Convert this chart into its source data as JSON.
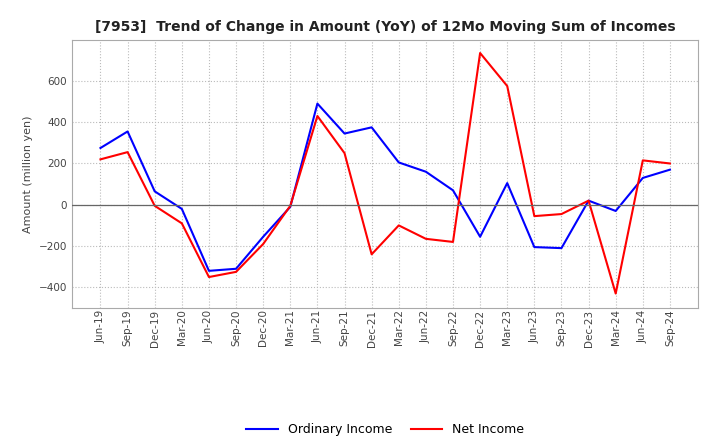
{
  "title": "[7953]  Trend of Change in Amount (YoY) of 12Mo Moving Sum of Incomes",
  "ylabel": "Amount (million yen)",
  "background_color": "#ffffff",
  "plot_bg_color": "#ffffff",
  "grid_color": "#bbbbbb",
  "labels": [
    "Jun-19",
    "Sep-19",
    "Dec-19",
    "Mar-20",
    "Jun-20",
    "Sep-20",
    "Dec-20",
    "Mar-21",
    "Jun-21",
    "Sep-21",
    "Dec-21",
    "Mar-22",
    "Jun-22",
    "Sep-22",
    "Dec-22",
    "Mar-23",
    "Jun-23",
    "Sep-23",
    "Dec-23",
    "Mar-24",
    "Jun-24",
    "Sep-24"
  ],
  "ordinary_income": [
    275,
    355,
    65,
    -20,
    -320,
    -310,
    -155,
    -10,
    490,
    345,
    375,
    205,
    160,
    70,
    -155,
    105,
    -205,
    -210,
    20,
    -30,
    130,
    170
  ],
  "net_income": [
    220,
    255,
    -5,
    -90,
    -350,
    -325,
    -190,
    -5,
    430,
    250,
    -240,
    -100,
    -165,
    -180,
    735,
    575,
    -55,
    -45,
    20,
    -430,
    215,
    200
  ],
  "ordinary_income_color": "#0000ff",
  "net_income_color": "#ff0000",
  "ylim": [
    -500,
    800
  ],
  "yticks": [
    -400,
    -200,
    0,
    200,
    400,
    600
  ],
  "line_width": 1.5,
  "title_fontsize": 10,
  "ylabel_fontsize": 8,
  "tick_fontsize": 7.5
}
